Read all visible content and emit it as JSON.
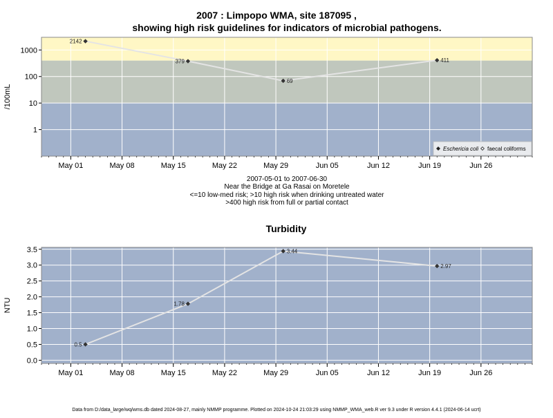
{
  "title_line1": "2007 : Limpopo WMA, site 187095 ,",
  "title_line2": "showing high risk guidelines for indicators of microbial pathogens.",
  "subtitle_lines": [
    "2007-05-01 to 2007-06-30",
    "Near the Bridge at Ga Rasai on Moretele",
    "<=10 low-med risk; >10 high risk when drinking untreated water",
    ">400 high risk from full or partial contact"
  ],
  "footer": "Data from D:/data_large/wq/wms.db dated 2024-08-27, mainly NMMP programme. Plotted on 2024-10-24 21:03:29 using NMMP_WMA_web.R ver 9.3 under R version 4.4.1 (2024-06-14 ucrt)",
  "colors": {
    "low_band": "#a1b1cb",
    "mid_band": "#c0c7bd",
    "high_band": "#fff7c5",
    "turbidity_bg": "#a1b1cb",
    "line": "#e4e4e4",
    "point": "#333333"
  },
  "chart_data": [
    {
      "type": "line",
      "title": "",
      "ylabel": "/100mL",
      "y_scale": "log",
      "ylim": [
        0.1,
        3000
      ],
      "yticks": [
        1,
        10,
        100,
        1000
      ],
      "ytick_labels": [
        "1",
        "10",
        "100",
        "1000"
      ],
      "xlim": [
        "2007-04-27",
        "2007-07-03"
      ],
      "xticks": [
        "2007-05-01",
        "2007-05-08",
        "2007-05-15",
        "2007-05-22",
        "2007-05-29",
        "2007-06-05",
        "2007-06-12",
        "2007-06-19",
        "2007-06-26"
      ],
      "xtick_labels": [
        "May 01",
        "May 08",
        "May 15",
        "May 22",
        "May 29",
        "Jun 05",
        "Jun 12",
        "Jun 19",
        "Jun 26"
      ],
      "risk_bands": [
        {
          "from": 0.1,
          "to": 10,
          "color": "#a1b1cb"
        },
        {
          "from": 10,
          "to": 400,
          "color": "#c0c7bd"
        },
        {
          "from": 400,
          "to": 3000,
          "color": "#fff7c5"
        }
      ],
      "series": [
        {
          "name": "Eschericia coli",
          "x": [
            "2007-05-03",
            "2007-05-17",
            "2007-05-30",
            "2007-06-20"
          ],
          "y": [
            2142,
            379,
            69,
            411
          ],
          "labels": [
            "2142",
            "379",
            "69",
            "411"
          ],
          "label_side": [
            "left",
            "left",
            "right",
            "right"
          ]
        }
      ],
      "legend": {
        "placement": "bottom-right",
        "entries": [
          {
            "label": "Eschericia coli",
            "marker": "filled-diamond",
            "italic": true
          },
          {
            "label": "faecal coliforms",
            "marker": "open-diamond",
            "italic": false
          }
        ]
      },
      "grid": true
    },
    {
      "type": "line",
      "title": "Turbidity",
      "ylabel": "NTU",
      "ylim": [
        -0.1,
        3.56
      ],
      "yticks": [
        0.0,
        0.5,
        1.0,
        1.5,
        2.0,
        2.5,
        3.0,
        3.5
      ],
      "ytick_labels": [
        "0.0",
        "0.5",
        "1.0",
        "1.5",
        "2.0",
        "2.5",
        "3.0",
        "3.5"
      ],
      "xlim": [
        "2007-04-27",
        "2007-07-03"
      ],
      "xticks": [
        "2007-05-01",
        "2007-05-08",
        "2007-05-15",
        "2007-05-22",
        "2007-05-29",
        "2007-06-05",
        "2007-06-12",
        "2007-06-19",
        "2007-06-26"
      ],
      "xtick_labels": [
        "May 01",
        "May 08",
        "May 15",
        "May 22",
        "May 29",
        "Jun 05",
        "Jun 12",
        "Jun 19",
        "Jun 26"
      ],
      "series": [
        {
          "name": "",
          "x": [
            "2007-05-03",
            "2007-05-17",
            "2007-05-30",
            "2007-06-20"
          ],
          "y": [
            0.5,
            1.78,
            3.44,
            2.97
          ],
          "labels": [
            "0.5",
            "1.78",
            "3.44",
            "2.97"
          ],
          "label_side": [
            "left",
            "left",
            "right",
            "right"
          ]
        }
      ],
      "grid": true
    }
  ]
}
